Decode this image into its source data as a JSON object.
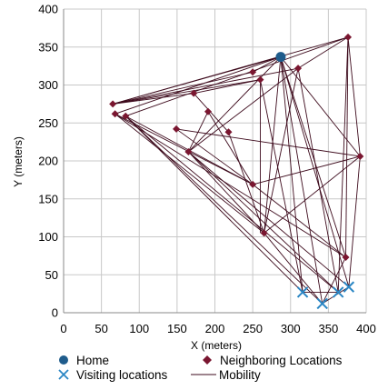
{
  "chart_data": {
    "type": "scatter",
    "title": "",
    "xlabel": "X (meters)",
    "ylabel": "Y (meters)",
    "xlim": [
      0,
      400
    ],
    "ylim": [
      0,
      400
    ],
    "xticks": [
      0,
      50,
      100,
      150,
      200,
      250,
      300,
      350,
      400
    ],
    "yticks": [
      0,
      50,
      100,
      150,
      200,
      250,
      300,
      350,
      400
    ],
    "grid": true,
    "legend_position": "bottom",
    "colors": {
      "home": "#1f5c8c",
      "neighboring": "#7a1630",
      "visiting": "#2a86c4",
      "mobility": "#3d0a1c",
      "grid": "#c8c8c8",
      "axis": "#8a8a8a"
    },
    "series": [
      {
        "name": "Home",
        "marker": "circle",
        "points": [
          [
            287,
            337
          ]
        ]
      },
      {
        "name": "Neighboring Locations",
        "marker": "diamond",
        "points": [
          [
            376,
            363
          ],
          [
            250,
            317
          ],
          [
            310,
            322
          ],
          [
            260,
            307
          ],
          [
            65,
            275
          ],
          [
            172,
            289
          ],
          [
            191,
            265
          ],
          [
            68,
            262
          ],
          [
            82,
            259
          ],
          [
            149,
            242
          ],
          [
            218,
            238
          ],
          [
            165,
            212
          ],
          [
            392,
            206
          ],
          [
            250,
            169
          ],
          [
            265,
            105
          ],
          [
            373,
            73
          ]
        ]
      },
      {
        "name": "Visiting locations",
        "marker": "x",
        "points": [
          [
            316,
            27
          ],
          [
            342,
            12
          ],
          [
            363,
            27
          ],
          [
            377,
            34
          ]
        ]
      },
      {
        "name": "Mobility",
        "marker": "line",
        "segments": [
          [
            [
              65,
              275
            ],
            [
              376,
              363
            ]
          ],
          [
            [
              65,
              275
            ],
            [
              287,
              337
            ]
          ],
          [
            [
              65,
              275
            ],
            [
              310,
              322
            ]
          ],
          [
            [
              65,
              275
            ],
            [
              260,
              307
            ]
          ],
          [
            [
              65,
              275
            ],
            [
              172,
              289
            ]
          ],
          [
            [
              65,
              275
            ],
            [
              250,
              317
            ]
          ],
          [
            [
              68,
              262
            ],
            [
              287,
              337
            ]
          ],
          [
            [
              68,
              262
            ],
            [
              265,
              105
            ]
          ],
          [
            [
              68,
              262
            ],
            [
              373,
              73
            ]
          ],
          [
            [
              68,
              262
            ],
            [
              250,
              169
            ]
          ],
          [
            [
              82,
              259
            ],
            [
              376,
              363
            ]
          ],
          [
            [
              82,
              259
            ],
            [
              342,
              12
            ]
          ],
          [
            [
              82,
              259
            ],
            [
              316,
              27
            ]
          ],
          [
            [
              82,
              259
            ],
            [
              250,
              169
            ]
          ],
          [
            [
              82,
              259
            ],
            [
              363,
              27
            ]
          ],
          [
            [
              149,
              242
            ],
            [
              392,
              206
            ]
          ],
          [
            [
              165,
              212
            ],
            [
              287,
              337
            ]
          ],
          [
            [
              165,
              212
            ],
            [
              310,
              322
            ]
          ],
          [
            [
              165,
              212
            ],
            [
              265,
              105
            ]
          ],
          [
            [
              165,
              212
            ],
            [
              377,
              34
            ]
          ],
          [
            [
              165,
              212
            ],
            [
              363,
              27
            ]
          ],
          [
            [
              165,
              212
            ],
            [
              191,
              265
            ]
          ],
          [
            [
              172,
              289
            ],
            [
              218,
              238
            ]
          ],
          [
            [
              172,
              289
            ],
            [
              260,
              307
            ]
          ],
          [
            [
              191,
              265
            ],
            [
              250,
              169
            ]
          ],
          [
            [
              218,
              238
            ],
            [
              265,
              105
            ]
          ],
          [
            [
              287,
              337
            ],
            [
              265,
              105
            ]
          ],
          [
            [
              287,
              337
            ],
            [
              373,
              73
            ]
          ],
          [
            [
              287,
              337
            ],
            [
              342,
              12
            ]
          ],
          [
            [
              287,
              337
            ],
            [
              377,
              34
            ]
          ],
          [
            [
              287,
              337
            ],
            [
              392,
              206
            ]
          ],
          [
            [
              287,
              337
            ],
            [
              316,
              27
            ]
          ],
          [
            [
              287,
              337
            ],
            [
              250,
              317
            ]
          ],
          [
            [
              376,
              363
            ],
            [
              363,
              27
            ]
          ],
          [
            [
              376,
              363
            ],
            [
              373,
              73
            ]
          ],
          [
            [
              376,
              363
            ],
            [
              392,
              206
            ]
          ],
          [
            [
              376,
              363
            ],
            [
              310,
              322
            ]
          ],
          [
            [
              310,
              322
            ],
            [
              265,
              105
            ]
          ],
          [
            [
              310,
              322
            ],
            [
              363,
              27
            ]
          ],
          [
            [
              392,
              206
            ],
            [
              265,
              105
            ]
          ],
          [
            [
              392,
              206
            ],
            [
              377,
              34
            ]
          ],
          [
            [
              392,
              206
            ],
            [
              250,
              169
            ]
          ],
          [
            [
              260,
              307
            ],
            [
              260,
              105
            ]
          ],
          [
            [
              260,
              307
            ],
            [
              316,
              27
            ]
          ],
          [
            [
              250,
              169
            ],
            [
              373,
              73
            ]
          ],
          [
            [
              265,
              105
            ],
            [
              342,
              12
            ]
          ],
          [
            [
              373,
              73
            ],
            [
              342,
              12
            ]
          ],
          [
            [
              316,
              27
            ],
            [
              363,
              27
            ]
          ],
          [
            [
              342,
              12
            ],
            [
              377,
              34
            ]
          ],
          [
            [
              149,
              242
            ],
            [
              250,
              169
            ]
          ]
        ]
      }
    ]
  }
}
